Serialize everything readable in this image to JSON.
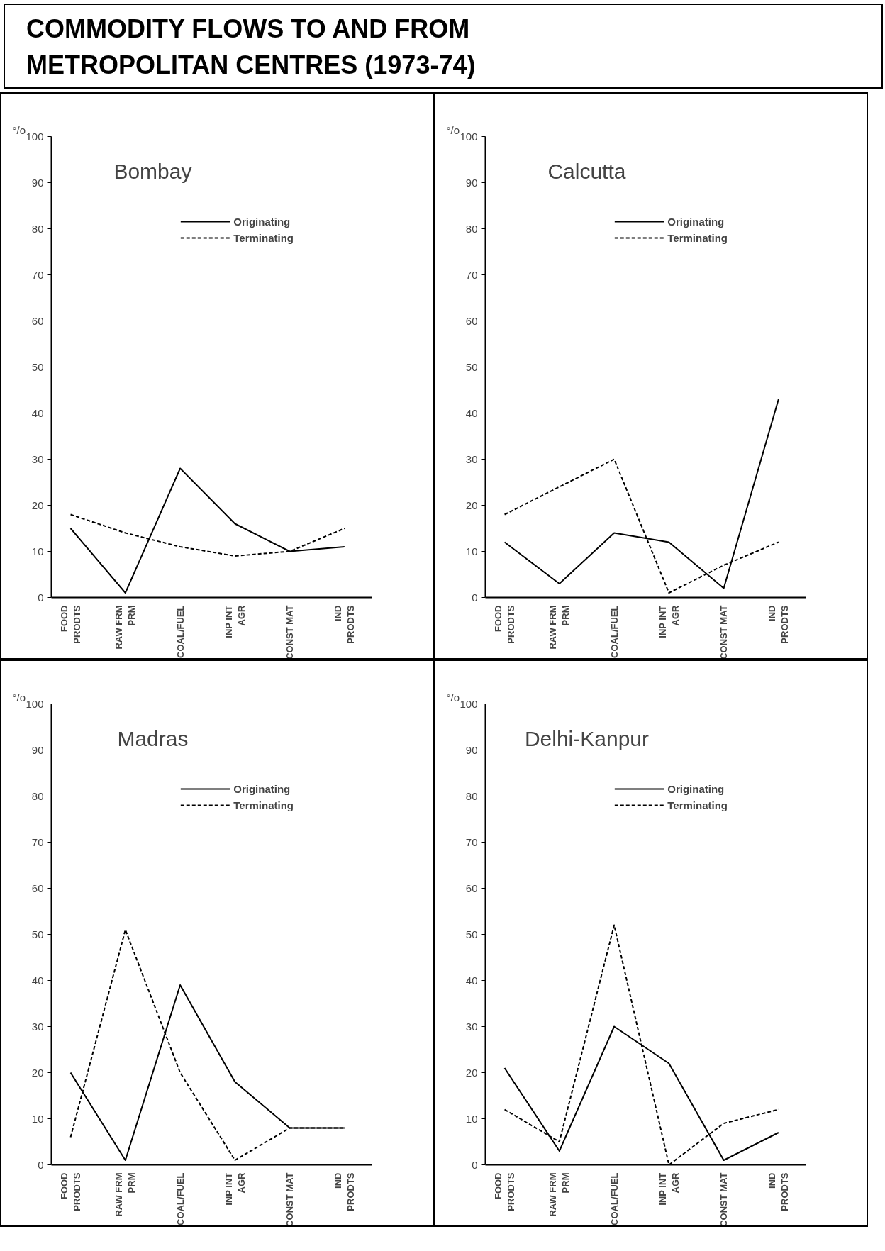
{
  "chart_data": [
    {
      "type": "other",
      "title": "COMMODITY FLOWS TO AND FROM\nMETROPOLITAN CENTRES (1973-74)"
    },
    {
      "type": "line",
      "title": "Bombay",
      "ylabel": "°/o",
      "categories": [
        "FOOD\nPRODTS",
        "RAW FRM\nPRM",
        "COAL/FUEL",
        "INP INT\nAGR",
        "CONST MAT",
        "IND\nPRODTS"
      ],
      "ylim": [
        0,
        100
      ],
      "yticks": [
        0,
        10,
        20,
        30,
        40,
        50,
        60,
        70,
        80,
        90,
        100
      ],
      "grid": false,
      "legend": "top right",
      "series": [
        {
          "name": "Originating",
          "color": "#000000",
          "line_style": "solid",
          "values": [
            15,
            1,
            28,
            16,
            10,
            11
          ]
        },
        {
          "name": "Terminating",
          "color": "#000000",
          "line_style": "dashed",
          "values": [
            18,
            14,
            11,
            9,
            10,
            15
          ]
        }
      ]
    },
    {
      "type": "line",
      "title": "Calcutta",
      "ylabel": "°/o",
      "categories": [
        "FOOD\nPRODTS",
        "RAW FRM\nPRM",
        "COAL/FUEL",
        "INP INT\nAGR",
        "CONST MAT",
        "IND\nPRODTS"
      ],
      "ylim": [
        0,
        100
      ],
      "yticks": [
        0,
        10,
        20,
        30,
        40,
        50,
        60,
        70,
        80,
        90,
        100
      ],
      "grid": false,
      "legend": "top right",
      "series": [
        {
          "name": "Originating",
          "color": "#000000",
          "line_style": "solid",
          "values": [
            12,
            3,
            14,
            12,
            2,
            43
          ]
        },
        {
          "name": "Terminating",
          "color": "#000000",
          "line_style": "dashed",
          "values": [
            18,
            24,
            30,
            1,
            7,
            12
          ]
        }
      ]
    },
    {
      "type": "line",
      "title": "Madras",
      "ylabel": "°/o",
      "categories": [
        "FOOD\nPRODTS",
        "RAW FRM\nPRM",
        "COAL/FUEL",
        "INP INT\nAGR",
        "CONST MAT",
        "IND\nPRODTS"
      ],
      "ylim": [
        0,
        100
      ],
      "yticks": [
        0,
        10,
        20,
        30,
        40,
        50,
        60,
        70,
        80,
        90,
        100
      ],
      "grid": false,
      "legend": "top right",
      "series": [
        {
          "name": "Originating",
          "color": "#000000",
          "line_style": "solid",
          "values": [
            20,
            1,
            39,
            18,
            8,
            8
          ]
        },
        {
          "name": "Terminating",
          "color": "#000000",
          "line_style": "dashed",
          "values": [
            6,
            51,
            20,
            1,
            8,
            8
          ]
        }
      ]
    },
    {
      "type": "line",
      "title": "Delhi-Kanpur",
      "ylabel": "°/o",
      "categories": [
        "FOOD\nPRODTS",
        "RAW FRM\nPRM",
        "COAL/FUEL",
        "INP INT\nAGR",
        "CONST MAT",
        "IND\nPRODTS"
      ],
      "ylim": [
        0,
        100
      ],
      "yticks": [
        0,
        10,
        20,
        30,
        40,
        50,
        60,
        70,
        80,
        90,
        100
      ],
      "grid": false,
      "legend": "top right",
      "series": [
        {
          "name": "Originating",
          "color": "#000000",
          "line_style": "solid",
          "values": [
            21,
            3,
            30,
            22,
            1,
            7
          ]
        },
        {
          "name": "Terminating",
          "color": "#000000",
          "line_style": "dashed",
          "values": [
            12,
            5,
            52,
            0,
            9,
            12
          ]
        }
      ]
    }
  ]
}
